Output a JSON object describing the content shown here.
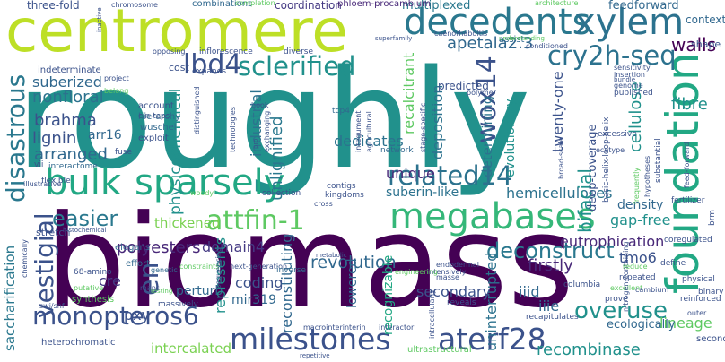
{
  "words": [
    {
      "text": "roughly",
      "color": "#21918c",
      "rotate": false
    },
    {
      "text": "biomass",
      "color": "#440154",
      "rotate": false
    },
    {
      "text": "centromere",
      "color": "#bddf26",
      "rotate": false
    },
    {
      "text": "decedents",
      "color": "#2a788e",
      "rotate": false
    },
    {
      "text": "xylem",
      "color": "#2c728e",
      "rotate": false
    },
    {
      "text": "foundation",
      "color": "#22a884",
      "rotate": true
    },
    {
      "text": "megabases",
      "color": "#35b779",
      "rotate": false
    },
    {
      "text": "sparsely",
      "color": "#22a884",
      "rotate": false
    },
    {
      "text": "bulk",
      "color": "#22a884",
      "rotate": false
    },
    {
      "text": "milestones",
      "color": "#3b528b",
      "rotate": false
    },
    {
      "text": "aterf28",
      "color": "#3b528b",
      "rotate": false
    },
    {
      "text": "monopteros6",
      "color": "#3b528b",
      "rotate": false
    },
    {
      "text": "attfin-1",
      "color": "#5ec962",
      "rotate": false
    },
    {
      "text": "related14",
      "color": "#2c728e",
      "rotate": false
    },
    {
      "text": "sclerified",
      "color": "#21918c",
      "rotate": false
    },
    {
      "text": "disastrous",
      "color": "#2a788e",
      "rotate": true
    },
    {
      "text": "vestigial",
      "color": "#3b528b",
      "rotate": true
    },
    {
      "text": "cry2h-seq",
      "color": "#2c728e",
      "rotate": false
    },
    {
      "text": "wox14",
      "color": "#3b528b",
      "rotate": true
    },
    {
      "text": "lbd4",
      "color": "#3b528b",
      "rotate": false
    },
    {
      "text": "overuse",
      "color": "#21918c",
      "rotate": false
    },
    {
      "text": "deconstruct",
      "color": "#2a788e",
      "rotate": false
    },
    {
      "text": "easier",
      "color": "#2a788e",
      "rotate": false
    },
    {
      "text": "en",
      "color": "#3b528b",
      "rotate": true
    },
    {
      "text": "brahma",
      "color": "#3b528b",
      "rotate": false
    },
    {
      "text": "lignin",
      "color": "#3b528b",
      "rotate": false
    },
    {
      "text": "arr16",
      "color": "#31688e",
      "rotate": false
    },
    {
      "text": "arranged",
      "color": "#31688e",
      "rotate": false
    },
    {
      "text": "suberized",
      "color": "#31688e",
      "rotate": false
    },
    {
      "text": "nonfloral",
      "color": "#2c728e",
      "rotate": false
    },
    {
      "text": "apetala2.3",
      "color": "#31688e",
      "rotate": false
    },
    {
      "text": "walls",
      "color": "#440154",
      "rotate": false
    },
    {
      "text": "revolution",
      "color": "#31688e",
      "rotate": false
    },
    {
      "text": "polyesters",
      "color": "#482878",
      "rotate": false
    },
    {
      "text": "domain4",
      "color": "#443983",
      "rotate": false
    },
    {
      "text": "eutrophication",
      "color": "#482878",
      "rotate": false
    },
    {
      "text": "lineage",
      "color": "#5ec962",
      "rotate": false
    },
    {
      "text": "recombinase",
      "color": "#21918c",
      "rotate": false
    },
    {
      "text": "intercalated",
      "color": "#7ad151",
      "rotate": false
    },
    {
      "text": "saccharification",
      "color": "#2a788e",
      "rotate": true
    },
    {
      "text": "coding",
      "color": "#3b528b",
      "rotate": false
    },
    {
      "text": "perturb",
      "color": "#31688e",
      "rotate": false
    },
    {
      "text": "mir319",
      "color": "#31688e",
      "rotate": false
    },
    {
      "text": "pxy",
      "color": "#3b528b",
      "rotate": false
    },
    {
      "text": "firstly",
      "color": "#482878",
      "rotate": false
    },
    {
      "text": "tmo6",
      "color": "#3b528b",
      "rotate": false
    },
    {
      "text": "iiid",
      "color": "#31688e",
      "rotate": false
    },
    {
      "text": "iiie",
      "color": "#31688e",
      "rotate": false
    },
    {
      "text": "secondary",
      "color": "#3b528b",
      "rotate": false
    },
    {
      "text": "cre",
      "color": "#443983",
      "rotate": false
    },
    {
      "text": "unique",
      "color": "#482878",
      "rotate": false
    },
    {
      "text": "hemicelluloses",
      "color": "#2c728e",
      "rotate": false
    },
    {
      "text": "suberin-like",
      "color": "#2c728e",
      "rotate": false
    },
    {
      "text": "gap-free",
      "color": "#21918c",
      "rotate": false
    },
    {
      "text": "density",
      "color": "#31688e",
      "rotate": false
    },
    {
      "text": "dedicates",
      "color": "#2c728e",
      "rotate": false
    },
    {
      "text": "thickened",
      "color": "#7ad151",
      "rotate": false
    },
    {
      "text": "industrial",
      "color": "#2c728e",
      "rotate": true
    },
    {
      "text": "physicochemical",
      "color": "#21918c",
      "rotate": true
    },
    {
      "text": "deposition",
      "color": "#2c728e",
      "rotate": true
    },
    {
      "text": "bifacial",
      "color": "#21918c",
      "rotate": true
    },
    {
      "text": "cellulose",
      "color": "#21918c",
      "rotate": true
    },
    {
      "text": "fibre",
      "color": "#21918c",
      "rotate": false
    },
    {
      "text": "twenty-one",
      "color": "#3b528b",
      "rotate": true
    },
    {
      "text": "evolutionary",
      "color": "#21918c",
      "rotate": true
    },
    {
      "text": "determining",
      "color": "#2c728e",
      "rotate": true
    },
    {
      "text": "unlignified",
      "color": "#2a788e",
      "rotate": true
    },
    {
      "text": "represents",
      "color": "#21918c",
      "rotate": true
    },
    {
      "text": "reconstituting",
      "color": "#31688e",
      "rotate": true
    },
    {
      "text": "uninterrupted",
      "color": "#2c728e",
      "rotate": true
    },
    {
      "text": "recognizable",
      "color": "#22a884",
      "rotate": true
    },
    {
      "text": "lowered",
      "color": "#31688e",
      "rotate": true
    },
    {
      "text": "recalcitrant",
      "color": "#5ec962",
      "rotate": true
    },
    {
      "text": "deep-coverage",
      "color": "#3b528b",
      "rotate": true
    },
    {
      "text": "multiplexed",
      "color": "#2a788e",
      "rotate": false
    },
    {
      "text": "feedforward",
      "color": "#31688e",
      "rotate": false
    },
    {
      "text": "three-fold",
      "color": "#3b528b",
      "rotate": false
    },
    {
      "text": "coordination",
      "color": "#443983",
      "rotate": false
    },
    {
      "text": "phloem-procambium",
      "color": "#482878",
      "rotate": false
    },
    {
      "text": "combinations",
      "color": "#31688e",
      "rotate": false
    },
    {
      "text": "context",
      "color": "#31688e",
      "rotate": false
    },
    {
      "text": "shape",
      "color": "#3b528b",
      "rotate": false
    },
    {
      "text": "predicted",
      "color": "#3b528b",
      "rotate": false
    },
    {
      "text": "assist",
      "color": "#31688e",
      "rotate": false
    },
    {
      "text": "cost",
      "color": "#3b528b",
      "rotate": false
    },
    {
      "text": "hierarchy",
      "color": "#31688e",
      "rotate": false
    },
    {
      "text": "wuschel",
      "color": "#31688e",
      "rotate": false
    },
    {
      "text": "exploit",
      "color": "#3b528b",
      "rotate": false
    },
    {
      "text": "account",
      "color": "#3b528b",
      "rotate": false
    },
    {
      "text": "cin-tcps",
      "color": "#3b528b",
      "rotate": false
    },
    {
      "text": "interactome",
      "color": "#31688e",
      "rotate": false
    },
    {
      "text": "indeterminate",
      "color": "#3b528b",
      "rotate": false
    },
    {
      "text": "flexible",
      "color": "#3b528b",
      "rotate": false
    },
    {
      "text": "stretch",
      "color": "#3b528b",
      "rotate": false
    },
    {
      "text": "histochemical",
      "color": "#3b528b",
      "rotate": false
    },
    {
      "text": "next-generation",
      "color": "#3b528b",
      "rotate": false
    },
    {
      "text": "elegans",
      "color": "#31688e",
      "rotate": false
    },
    {
      "text": "effort",
      "color": "#31688e",
      "rotate": false
    },
    {
      "text": "68-amino",
      "color": "#3b528b",
      "rotate": false
    },
    {
      "text": "genetic",
      "color": "#31688e",
      "rotate": false
    },
    {
      "text": "massively",
      "color": "#3b528b",
      "rotate": false
    },
    {
      "text": "synthesis",
      "color": "#5ec962",
      "rotate": false
    },
    {
      "text": "putative",
      "color": "#5ec962",
      "rotate": false
    },
    {
      "text": "testing",
      "color": "#5ec962",
      "rotate": false
    },
    {
      "text": "inverse",
      "color": "#31688e",
      "rotate": false
    },
    {
      "text": "constraints",
      "color": "#5ec962",
      "rotate": false
    },
    {
      "text": "repeated",
      "color": "#3b528b",
      "rotate": false
    },
    {
      "text": "define",
      "color": "#3b528b",
      "rotate": false
    },
    {
      "text": "physical",
      "color": "#3b528b",
      "rotate": false
    },
    {
      "text": "excellent",
      "color": "#5ec962",
      "rotate": false
    },
    {
      "text": "columbia",
      "color": "#3b528b",
      "rotate": false
    },
    {
      "text": "prove",
      "color": "#3b528b",
      "rotate": false
    },
    {
      "text": "recapitulates",
      "color": "#3b528b",
      "rotate": false
    },
    {
      "text": "reveals",
      "color": "#3b528b",
      "rotate": false
    },
    {
      "text": "ecologically",
      "color": "#31688e",
      "rotate": false
    },
    {
      "text": "ultrastructural",
      "color": "#5ec962",
      "rotate": false
    },
    {
      "text": "heterochromatic",
      "color": "#3b528b",
      "rotate": false
    },
    {
      "text": "macrointerinterin",
      "color": "#3b528b",
      "rotate": false
    },
    {
      "text": "interactor",
      "color": "#3b528b",
      "rotate": false
    },
    {
      "text": "reinforced",
      "color": "#3b528b",
      "rotate": false
    },
    {
      "text": "coregulated",
      "color": "#3b528b",
      "rotate": false
    },
    {
      "text": "fertilizer",
      "color": "#3b528b",
      "rotate": false
    },
    {
      "text": "binary",
      "color": "#3b528b",
      "rotate": false
    },
    {
      "text": "outer",
      "color": "#3b528b",
      "rotate": false
    },
    {
      "text": "cambium",
      "color": "#3b528b",
      "rotate": false
    },
    {
      "text": "endodermal",
      "color": "#3b528b",
      "rotate": false
    },
    {
      "text": "intensively",
      "color": "#3b528b",
      "rotate": false
    },
    {
      "text": "masse",
      "color": "#3b528b",
      "rotate": false
    },
    {
      "text": "collection",
      "color": "#3b528b",
      "rotate": false
    },
    {
      "text": "cross",
      "color": "#3b528b",
      "rotate": false
    },
    {
      "text": "contigs",
      "color": "#3b528b",
      "rotate": false
    },
    {
      "text": "kingdoms",
      "color": "#3b528b",
      "rotate": false
    },
    {
      "text": "network",
      "color": "#31688e",
      "rotate": false
    },
    {
      "text": "ecotype",
      "color": "#3b528b",
      "rotate": false
    },
    {
      "text": "excessive",
      "color": "#3b528b",
      "rotate": false
    },
    {
      "text": "published",
      "color": "#3b528b",
      "rotate": false
    },
    {
      "text": "insertion",
      "color": "#3b528b",
      "rotate": false
    },
    {
      "text": "sensitivity",
      "color": "#3b528b",
      "rotate": false
    },
    {
      "text": "genome",
      "color": "#3b528b",
      "rotate": false
    },
    {
      "text": "bundle",
      "color": "#3b528b",
      "rotate": false
    },
    {
      "text": "polymer",
      "color": "#3b528b",
      "rotate": false
    },
    {
      "text": "expands",
      "color": "#3b528b",
      "rotate": false
    },
    {
      "text": "diverse",
      "color": "#3b528b",
      "rotate": false
    },
    {
      "text": "chromosome",
      "color": "#3b528b",
      "rotate": false
    },
    {
      "text": "completion",
      "color": "#5ec962",
      "rotate": false
    },
    {
      "text": "architecture",
      "color": "#5ec962",
      "rotate": false
    },
    {
      "text": "understanding",
      "color": "#5ec962",
      "rotate": false
    },
    {
      "text": "caenorhabditis",
      "color": "#3b528b",
      "rotate": false
    },
    {
      "text": "conditioned",
      "color": "#3b528b",
      "rotate": false
    },
    {
      "text": "inflorescence",
      "color": "#3b528b",
      "rotate": false
    },
    {
      "text": "superfamily",
      "color": "#3b528b",
      "rotate": false
    },
    {
      "text": "opposing",
      "color": "#3b528b",
      "rotate": false
    },
    {
      "text": "project",
      "color": "#3b528b",
      "rotate": false
    },
    {
      "text": "belong",
      "color": "#5ec962",
      "rotate": false
    },
    {
      "text": "fuse",
      "color": "#3b528b",
      "rotate": false
    },
    {
      "text": "vii",
      "color": "#3b528b",
      "rotate": false
    },
    {
      "text": "hook",
      "color": "#3b528b",
      "rotate": false
    },
    {
      "text": "tcp4",
      "color": "#31688e",
      "rotate": false
    },
    {
      "text": "secondary-wall",
      "color": "#3b528b",
      "rotate": false
    },
    {
      "text": "brm",
      "color": "#3b528b",
      "rotate": false
    },
    {
      "text": "substantial",
      "color": "#3b528b",
      "rotate": true
    },
    {
      "text": "feed-forward",
      "color": "#3b528b",
      "rotate": true
    },
    {
      "text": "basic-helix-loop-helix",
      "color": "#3b528b",
      "rotate": true
    },
    {
      "text": "stage-specific",
      "color": "#3b528b",
      "rotate": true
    },
    {
      "text": "broad-scale",
      "color": "#3b528b",
      "rotate": true
    },
    {
      "text": "nitrogen-containing",
      "color": "#3b528b",
      "rotate": true
    },
    {
      "text": "hypotheses",
      "color": "#3b528b",
      "rotate": true
    },
    {
      "text": "frequently",
      "color": "#3b528b",
      "rotate": true
    },
    {
      "text": "agricultural",
      "color": "#5ec962",
      "rotate": true
    },
    {
      "text": "integument",
      "color": "#3b528b",
      "rotate": true
    },
    {
      "text": "exchanging",
      "color": "#3b528b",
      "rotate": true
    },
    {
      "text": "technologies",
      "color": "#3b528b",
      "rotate": true
    },
    {
      "text": "distinguished",
      "color": "#3b528b",
      "rotate": true
    },
    {
      "text": "chemically",
      "color": "#3b528b",
      "rotate": true
    },
    {
      "text": "intracellularly",
      "color": "#3b528b",
      "rotate": true
    },
    {
      "text": "sequencing",
      "color": "#3b528b",
      "rotate": true
    },
    {
      "text": "swi/snf",
      "color": "#3b528b",
      "rotate": true
    },
    {
      "text": "pro",
      "color": "#3b528b",
      "rotate": false
    },
    {
      "text": "inactive",
      "color": "#3b528b",
      "rotate": true
    },
    {
      "text": "reduce",
      "color": "#3b528b",
      "rotate": true
    },
    {
      "text": "repetitive",
      "color": "#5ec962",
      "rotate": false
    },
    {
      "text": "engineering",
      "color": "#3b528b",
      "rotate": false
    },
    {
      "text": "woody",
      "color": "#5ec962",
      "rotate": false
    },
    {
      "text": "illustrative",
      "color": "#5ec962",
      "rotate": false
    },
    {
      "text": "maps",
      "color": "#3b528b",
      "rotate": false
    },
    {
      "text": "metabolic",
      "color": "#3b528b",
      "rotate": false
    },
    {
      "text": "primary",
      "color": "#3b528b",
      "rotate": false
    }
  ]
}
